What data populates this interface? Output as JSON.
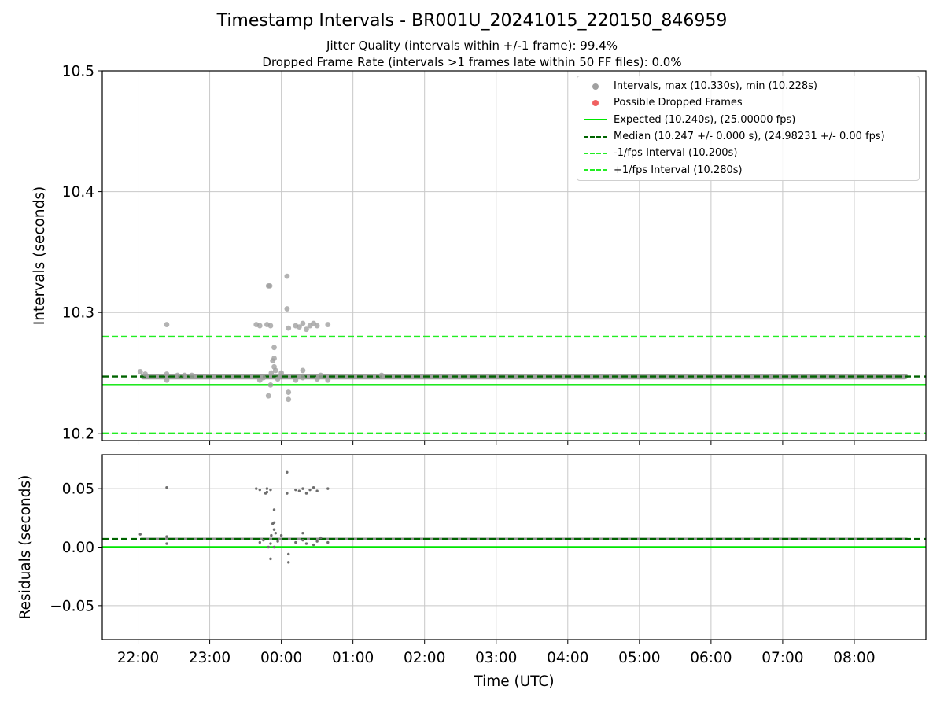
{
  "titles": {
    "main": "Timestamp Intervals - BR001U_20241015_220150_846959",
    "sub1": "Jitter Quality (intervals within +/-1 frame): 99.4%",
    "sub2": "Dropped Frame Rate (intervals >1 frames late within 50 FF files): 0.0%"
  },
  "colors": {
    "points": "#808080",
    "dropped": "#ff5a5a",
    "expected": "#00e600",
    "median": "#006400",
    "fps_bounds": "#22ee22",
    "grid": "#c8c8c8"
  },
  "legend": {
    "location": "upper right",
    "entries": [
      {
        "label": "Intervals, max (10.330s), min (10.228s)",
        "symbol": "dot",
        "color": "#a0a0a0"
      },
      {
        "label": "Possible Dropped Frames",
        "symbol": "dot",
        "color": "#f06060"
      },
      {
        "label": "Expected (10.240s), (25.00000 fps)",
        "symbol": "solid",
        "color": "#00e600"
      },
      {
        "label": "Median (10.247 +/- 0.000 s), (24.98231 +/- 0.00 fps)",
        "symbol": "dashed",
        "color": "#006400"
      },
      {
        "label": "-1/fps Interval (10.200s)",
        "symbol": "dashed",
        "color": "#22ee22"
      },
      {
        "label": "+1/fps Interval (10.280s)",
        "symbol": "dashed",
        "color": "#22ee22"
      }
    ]
  },
  "chart_data": [
    {
      "type": "scatter",
      "panel": "intervals",
      "ylabel": "Intervals (seconds)",
      "xlabel": "",
      "x_unit": "hours UTC from 22:00",
      "xlim": [
        -0.5,
        11.0
      ],
      "ylim": [
        10.194,
        10.5
      ],
      "yticks": [
        10.2,
        10.3,
        10.4,
        10.5
      ],
      "ytick_labels": [
        "10.2",
        "10.3",
        "10.4",
        "10.5"
      ],
      "xtick_labels": [
        "22:00",
        "23:00",
        "00:00",
        "01:00",
        "02:00",
        "03:00",
        "04:00",
        "05:00",
        "06:00",
        "07:00",
        "08:00"
      ],
      "grid": true,
      "reference_lines": [
        {
          "label": "Expected",
          "y": 10.24,
          "style": "solid"
        },
        {
          "label": "Median",
          "y": 10.247,
          "style": "dashed"
        },
        {
          "label": "-1/fps Interval",
          "y": 10.2,
          "style": "dashed"
        },
        {
          "label": "+1/fps Interval",
          "y": 10.28,
          "style": "dashed"
        }
      ],
      "baseline": {
        "y": 10.247,
        "x_start": 0.03,
        "x_end": 10.75
      },
      "outliers": [
        [
          0.03,
          10.251
        ],
        [
          0.1,
          10.249
        ],
        [
          0.4,
          10.29
        ],
        [
          0.4,
          10.244
        ],
        [
          0.4,
          10.249
        ],
        [
          0.55,
          10.248
        ],
        [
          0.65,
          10.248
        ],
        [
          0.75,
          10.248
        ],
        [
          1.65,
          10.29
        ],
        [
          1.7,
          10.289
        ],
        [
          1.8,
          10.29
        ],
        [
          1.85,
          10.289
        ],
        [
          1.82,
          10.322
        ],
        [
          1.84,
          10.322
        ],
        [
          1.85,
          10.24
        ],
        [
          1.82,
          10.231
        ],
        [
          1.88,
          10.26
        ],
        [
          1.9,
          10.262
        ],
        [
          1.9,
          10.255
        ],
        [
          1.92,
          10.252
        ],
        [
          1.86,
          10.25
        ],
        [
          1.9,
          10.271
        ],
        [
          1.95,
          10.245
        ],
        [
          2.0,
          10.25
        ],
        [
          1.7,
          10.244
        ],
        [
          1.75,
          10.246
        ],
        [
          2.08,
          10.33
        ],
        [
          2.08,
          10.303
        ],
        [
          2.1,
          10.287
        ],
        [
          2.1,
          10.234
        ],
        [
          2.1,
          10.228
        ],
        [
          2.2,
          10.289
        ],
        [
          2.25,
          10.288
        ],
        [
          2.3,
          10.291
        ],
        [
          2.35,
          10.286
        ],
        [
          2.3,
          10.252
        ],
        [
          2.4,
          10.289
        ],
        [
          2.45,
          10.291
        ],
        [
          2.5,
          10.289
        ],
        [
          2.65,
          10.29
        ],
        [
          2.65,
          10.244
        ],
        [
          2.2,
          10.244
        ],
        [
          2.3,
          10.246
        ],
        [
          2.5,
          10.245
        ],
        [
          2.55,
          10.248
        ],
        [
          3.4,
          10.248
        ]
      ]
    },
    {
      "type": "scatter",
      "panel": "residuals",
      "ylabel": "Residuals (seconds)",
      "xlabel": "Time (UTC)",
      "x_unit": "hours UTC from 22:00",
      "xlim": [
        -0.5,
        11.0
      ],
      "ylim": [
        -0.079,
        0.079
      ],
      "yticks": [
        -0.05,
        0.0,
        0.05
      ],
      "ytick_labels": [
        "−0.05",
        "0.00",
        "0.05"
      ],
      "xtick_labels": [
        "22:00",
        "23:00",
        "00:00",
        "01:00",
        "02:00",
        "03:00",
        "04:00",
        "05:00",
        "06:00",
        "07:00",
        "08:00"
      ],
      "grid": true,
      "reference_lines": [
        {
          "label": "Expected",
          "y": 0.0,
          "style": "solid"
        },
        {
          "label": "Median",
          "y": 0.007,
          "style": "dashed"
        }
      ],
      "baseline": {
        "y": 0.007,
        "x_start": 0.03,
        "x_end": 10.75
      },
      "outliers": [
        [
          0.03,
          0.011
        ],
        [
          0.4,
          0.051
        ],
        [
          0.4,
          0.003
        ],
        [
          0.4,
          0.009
        ],
        [
          1.65,
          0.05
        ],
        [
          1.7,
          0.049
        ],
        [
          1.8,
          0.05
        ],
        [
          1.85,
          0.049
        ],
        [
          1.78,
          0.046
        ],
        [
          1.8,
          0.047
        ],
        [
          1.85,
          -0.01
        ],
        [
          1.82,
          0.0
        ],
        [
          1.88,
          0.02
        ],
        [
          1.9,
          0.032
        ],
        [
          1.9,
          0.015
        ],
        [
          1.92,
          0.012
        ],
        [
          1.86,
          0.01
        ],
        [
          1.9,
          0.021
        ],
        [
          1.95,
          0.005
        ],
        [
          2.0,
          0.01
        ],
        [
          1.7,
          0.004
        ],
        [
          1.75,
          0.006
        ],
        [
          1.85,
          0.003
        ],
        [
          1.9,
          0.0
        ],
        [
          2.08,
          0.064
        ],
        [
          2.08,
          0.046
        ],
        [
          2.1,
          -0.006
        ],
        [
          2.1,
          -0.013
        ],
        [
          2.2,
          0.049
        ],
        [
          2.25,
          0.048
        ],
        [
          2.3,
          0.05
        ],
        [
          2.35,
          0.046
        ],
        [
          2.3,
          0.012
        ],
        [
          2.4,
          0.049
        ],
        [
          2.45,
          0.051
        ],
        [
          2.5,
          0.048
        ],
        [
          2.65,
          0.05
        ],
        [
          2.65,
          0.004
        ],
        [
          2.2,
          0.004
        ],
        [
          2.3,
          0.006
        ],
        [
          2.5,
          0.005
        ],
        [
          2.55,
          0.008
        ],
        [
          2.35,
          0.003
        ],
        [
          2.45,
          0.002
        ]
      ]
    }
  ]
}
